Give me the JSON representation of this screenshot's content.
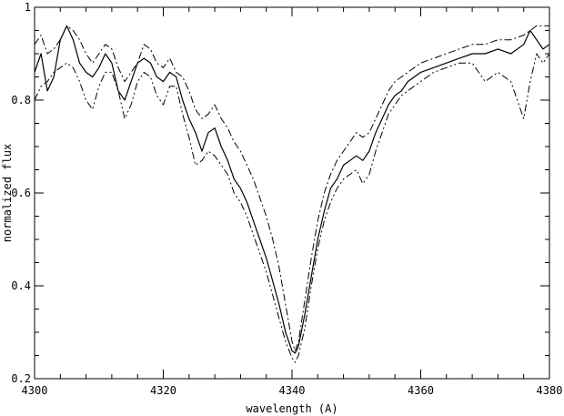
{
  "chart_data": {
    "type": "line",
    "title": "",
    "xlabel": "wavelength (A)",
    "ylabel": "normalized flux",
    "xlim": [
      4300,
      4380
    ],
    "ylim": [
      0.2,
      1.0
    ],
    "xticks": [
      4300,
      4320,
      4340,
      4360,
      4380
    ],
    "xtick_labels": [
      "4300",
      "4320",
      "4340",
      "4360",
      "4380"
    ],
    "yticks": [
      0.2,
      0.4,
      0.6,
      0.8,
      1.0
    ],
    "ytick_labels": [
      "0.2",
      "0.4",
      "0.6",
      "0.8",
      "1"
    ],
    "grid": false,
    "legend": "none",
    "series": [
      {
        "style": "solid",
        "color": "#000000",
        "x": [
          4300,
          4301,
          4302,
          4303,
          4304,
          4305,
          4306,
          4307,
          4308,
          4309,
          4310,
          4311,
          4312,
          4313,
          4314,
          4315,
          4316,
          4317,
          4318,
          4319,
          4320,
          4321,
          4322,
          4323,
          4324,
          4325,
          4326,
          4327,
          4328,
          4329,
          4330,
          4331,
          4332,
          4333,
          4334,
          4335,
          4336,
          4337,
          4338,
          4339,
          4340,
          4340.5,
          4341,
          4342,
          4343,
          4344,
          4345,
          4346,
          4347,
          4348,
          4349,
          4350,
          4351,
          4352,
          4353,
          4354,
          4355,
          4356,
          4357,
          4358,
          4359,
          4360,
          4362,
          4364,
          4366,
          4368,
          4370,
          4372,
          4374,
          4376,
          4377,
          4378,
          4379,
          4380
        ],
        "y": [
          0.86,
          0.9,
          0.82,
          0.85,
          0.93,
          0.96,
          0.93,
          0.88,
          0.86,
          0.85,
          0.87,
          0.9,
          0.88,
          0.82,
          0.8,
          0.84,
          0.88,
          0.89,
          0.88,
          0.85,
          0.84,
          0.86,
          0.85,
          0.8,
          0.76,
          0.73,
          0.69,
          0.73,
          0.74,
          0.7,
          0.67,
          0.63,
          0.61,
          0.58,
          0.54,
          0.5,
          0.46,
          0.41,
          0.36,
          0.3,
          0.26,
          0.255,
          0.27,
          0.34,
          0.42,
          0.5,
          0.56,
          0.61,
          0.63,
          0.66,
          0.67,
          0.68,
          0.67,
          0.69,
          0.73,
          0.76,
          0.79,
          0.81,
          0.82,
          0.84,
          0.85,
          0.86,
          0.87,
          0.88,
          0.89,
          0.9,
          0.9,
          0.91,
          0.9,
          0.92,
          0.95,
          0.93,
          0.91,
          0.92
        ]
      },
      {
        "style": "dash-dot",
        "color": "#000000",
        "x": [
          4300,
          4301,
          4302,
          4303,
          4304,
          4305,
          4306,
          4307,
          4308,
          4309,
          4310,
          4311,
          4312,
          4313,
          4314,
          4315,
          4316,
          4317,
          4318,
          4319,
          4320,
          4321,
          4322,
          4323,
          4324,
          4325,
          4326,
          4327,
          4328,
          4329,
          4330,
          4331,
          4332,
          4333,
          4334,
          4335,
          4336,
          4337,
          4338,
          4339,
          4340,
          4340.5,
          4341,
          4342,
          4343,
          4344,
          4345,
          4346,
          4347,
          4348,
          4349,
          4350,
          4351,
          4352,
          4353,
          4354,
          4355,
          4356,
          4357,
          4358,
          4359,
          4360,
          4362,
          4364,
          4366,
          4368,
          4370,
          4372,
          4374,
          4376,
          4378,
          4380
        ],
        "y": [
          0.92,
          0.94,
          0.9,
          0.91,
          0.93,
          0.96,
          0.95,
          0.93,
          0.9,
          0.88,
          0.9,
          0.92,
          0.91,
          0.87,
          0.84,
          0.86,
          0.88,
          0.92,
          0.91,
          0.88,
          0.87,
          0.89,
          0.86,
          0.85,
          0.82,
          0.78,
          0.76,
          0.77,
          0.79,
          0.76,
          0.74,
          0.71,
          0.69,
          0.66,
          0.63,
          0.59,
          0.55,
          0.5,
          0.44,
          0.36,
          0.28,
          0.26,
          0.28,
          0.37,
          0.46,
          0.54,
          0.6,
          0.64,
          0.67,
          0.69,
          0.71,
          0.73,
          0.72,
          0.73,
          0.76,
          0.79,
          0.82,
          0.84,
          0.85,
          0.86,
          0.87,
          0.88,
          0.89,
          0.9,
          0.91,
          0.92,
          0.92,
          0.93,
          0.93,
          0.94,
          0.96,
          0.96
        ]
      },
      {
        "style": "dash-dot-dot",
        "color": "#000000",
        "x": [
          4300,
          4301,
          4302,
          4303,
          4304,
          4305,
          4306,
          4307,
          4308,
          4309,
          4310,
          4311,
          4312,
          4313,
          4314,
          4315,
          4316,
          4317,
          4318,
          4319,
          4320,
          4321,
          4322,
          4323,
          4324,
          4325,
          4326,
          4327,
          4328,
          4329,
          4330,
          4331,
          4332,
          4333,
          4334,
          4335,
          4336,
          4337,
          4338,
          4339,
          4340,
          4340.5,
          4341,
          4342,
          4343,
          4344,
          4345,
          4346,
          4347,
          4348,
          4349,
          4350,
          4351,
          4352,
          4353,
          4354,
          4355,
          4356,
          4357,
          4358,
          4359,
          4360,
          4362,
          4364,
          4366,
          4368,
          4370,
          4372,
          4374,
          4376,
          4377,
          4378,
          4379,
          4380
        ],
        "y": [
          0.8,
          0.83,
          0.84,
          0.86,
          0.87,
          0.88,
          0.87,
          0.84,
          0.8,
          0.78,
          0.83,
          0.86,
          0.86,
          0.82,
          0.76,
          0.79,
          0.84,
          0.86,
          0.85,
          0.81,
          0.79,
          0.83,
          0.83,
          0.77,
          0.72,
          0.66,
          0.67,
          0.69,
          0.68,
          0.66,
          0.64,
          0.6,
          0.58,
          0.55,
          0.51,
          0.47,
          0.43,
          0.38,
          0.33,
          0.28,
          0.245,
          0.235,
          0.25,
          0.31,
          0.4,
          0.48,
          0.54,
          0.58,
          0.61,
          0.63,
          0.64,
          0.65,
          0.62,
          0.64,
          0.69,
          0.73,
          0.77,
          0.79,
          0.81,
          0.82,
          0.83,
          0.84,
          0.86,
          0.87,
          0.88,
          0.88,
          0.84,
          0.86,
          0.84,
          0.76,
          0.84,
          0.9,
          0.88,
          0.9
        ]
      }
    ]
  }
}
